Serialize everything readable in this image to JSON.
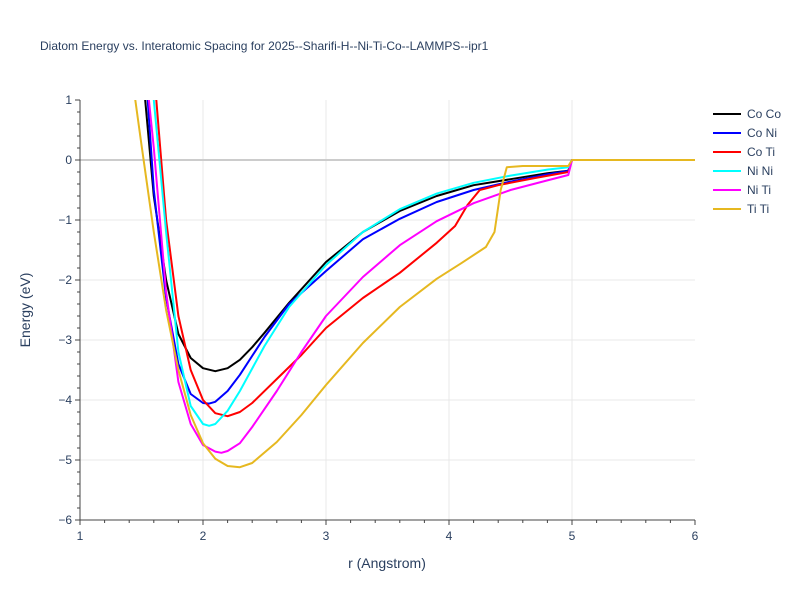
{
  "chart_data": {
    "type": "line",
    "title": "Diatom Energy vs. Interatomic Spacing for 2025--Sharifi-H--Ni-Ti-Co--LAMMPS--ipr1",
    "xlabel": "r (Angstrom)",
    "ylabel": "Energy (eV)",
    "xlim": [
      1,
      6
    ],
    "ylim": [
      -6,
      1
    ],
    "xticks": [
      "1",
      "2",
      "3",
      "4",
      "5",
      "6"
    ],
    "yticks": [
      "1",
      "0",
      "−1",
      "−2",
      "−3",
      "−4",
      "−5",
      "−6"
    ],
    "grid": true,
    "legend_position": "top-right",
    "series": [
      {
        "name": "Co Co",
        "color": "#000000",
        "x": [
          1.53,
          1.6,
          1.7,
          1.8,
          1.9,
          2.0,
          2.1,
          2.2,
          2.3,
          2.4,
          2.5,
          2.7,
          3.0,
          3.3,
          3.6,
          3.9,
          4.2,
          4.5,
          4.8,
          4.97,
          5.0,
          6.0
        ],
        "y": [
          1.0,
          -0.6,
          -2.0,
          -2.9,
          -3.3,
          -3.47,
          -3.52,
          -3.47,
          -3.33,
          -3.12,
          -2.88,
          -2.38,
          -1.7,
          -1.2,
          -0.85,
          -0.6,
          -0.42,
          -0.32,
          -0.22,
          -0.18,
          0.0,
          0.0
        ]
      },
      {
        "name": "Co Ni",
        "color": "#0000ff",
        "x": [
          1.55,
          1.6,
          1.7,
          1.8,
          1.9,
          2.0,
          2.05,
          2.1,
          2.2,
          2.3,
          2.5,
          2.7,
          3.0,
          3.3,
          3.6,
          3.9,
          4.2,
          4.5,
          4.8,
          4.97,
          5.0,
          6.0
        ],
        "y": [
          1.0,
          -0.5,
          -2.3,
          -3.4,
          -3.9,
          -4.05,
          -4.06,
          -4.03,
          -3.85,
          -3.58,
          -2.95,
          -2.4,
          -1.85,
          -1.32,
          -0.98,
          -0.7,
          -0.5,
          -0.36,
          -0.24,
          -0.18,
          0.0,
          0.0
        ]
      },
      {
        "name": "Co Ti",
        "color": "#ff0000",
        "x": [
          1.62,
          1.7,
          1.8,
          1.9,
          2.0,
          2.1,
          2.2,
          2.3,
          2.4,
          2.6,
          2.8,
          3.0,
          3.3,
          3.6,
          3.9,
          4.05,
          4.15,
          4.25,
          4.4,
          4.7,
          4.97,
          5.0,
          6.0
        ],
        "y": [
          1.0,
          -1.0,
          -2.6,
          -3.5,
          -4.0,
          -4.22,
          -4.27,
          -4.2,
          -4.05,
          -3.65,
          -3.25,
          -2.8,
          -2.3,
          -1.88,
          -1.38,
          -1.1,
          -0.75,
          -0.5,
          -0.42,
          -0.3,
          -0.2,
          0.0,
          0.0
        ]
      },
      {
        "name": "Ni Ni",
        "color": "#00ffff",
        "x": [
          1.6,
          1.7,
          1.8,
          1.9,
          2.0,
          2.05,
          2.1,
          2.2,
          2.3,
          2.5,
          2.7,
          3.0,
          3.3,
          3.6,
          3.9,
          4.2,
          4.5,
          4.8,
          4.97,
          5.0,
          6.0
        ],
        "y": [
          1.0,
          -1.2,
          -3.2,
          -4.1,
          -4.4,
          -4.43,
          -4.4,
          -4.18,
          -3.85,
          -3.1,
          -2.45,
          -1.75,
          -1.2,
          -0.82,
          -0.56,
          -0.38,
          -0.26,
          -0.16,
          -0.12,
          0.0,
          0.0
        ]
      },
      {
        "name": "Ni Ti",
        "color": "#ff00ff",
        "x": [
          1.56,
          1.6,
          1.7,
          1.8,
          1.9,
          2.0,
          2.1,
          2.15,
          2.2,
          2.3,
          2.4,
          2.6,
          2.8,
          3.0,
          3.3,
          3.6,
          3.9,
          4.2,
          4.5,
          4.8,
          4.97,
          5.0,
          6.0
        ],
        "y": [
          1.0,
          0.2,
          -2.2,
          -3.7,
          -4.4,
          -4.75,
          -4.86,
          -4.88,
          -4.85,
          -4.72,
          -4.45,
          -3.85,
          -3.2,
          -2.6,
          -1.95,
          -1.42,
          -1.02,
          -0.72,
          -0.5,
          -0.34,
          -0.25,
          0.0,
          0.0
        ]
      },
      {
        "name": "Ti Ti",
        "color": "#e6b820",
        "x": [
          1.45,
          1.5,
          1.6,
          1.7,
          1.8,
          1.9,
          2.0,
          2.1,
          2.2,
          2.3,
          2.4,
          2.6,
          2.8,
          3.0,
          3.3,
          3.6,
          3.9,
          4.1,
          4.3,
          4.37,
          4.42,
          4.47,
          4.6,
          4.97,
          5.0,
          6.0
        ],
        "y": [
          1.0,
          0.25,
          -1.2,
          -2.5,
          -3.5,
          -4.25,
          -4.72,
          -4.98,
          -5.1,
          -5.12,
          -5.05,
          -4.7,
          -4.25,
          -3.75,
          -3.05,
          -2.45,
          -1.98,
          -1.72,
          -1.45,
          -1.2,
          -0.5,
          -0.12,
          -0.1,
          -0.1,
          0.0,
          0.0
        ]
      }
    ]
  }
}
